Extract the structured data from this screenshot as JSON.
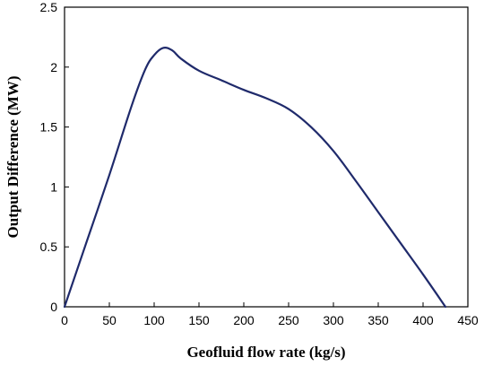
{
  "chart_data": {
    "type": "line",
    "title": "",
    "xlabel": "Geofluid flow rate (kg/s)",
    "ylabel": "Output Difference (MW)",
    "xlim": [
      0,
      450
    ],
    "ylim": [
      0,
      2.5
    ],
    "x_ticks": [
      "0",
      "50",
      "100",
      "150",
      "200",
      "250",
      "300",
      "350",
      "400",
      "450"
    ],
    "y_ticks": [
      "0",
      "0.5",
      "1",
      "1.5",
      "2",
      "2.5"
    ],
    "grid": false,
    "legend": "none",
    "line_color": "#1f2a6b",
    "series": [
      {
        "x": [
          0,
          25,
          50,
          75,
          90,
          100,
          110,
          120,
          130,
          150,
          175,
          200,
          225,
          250,
          275,
          300,
          325,
          350,
          375,
          400,
          425
        ],
        "y": [
          0,
          0.55,
          1.1,
          1.68,
          1.98,
          2.1,
          2.16,
          2.14,
          2.07,
          1.97,
          1.89,
          1.81,
          1.74,
          1.65,
          1.5,
          1.3,
          1.05,
          0.79,
          0.53,
          0.27,
          0
        ]
      }
    ]
  }
}
